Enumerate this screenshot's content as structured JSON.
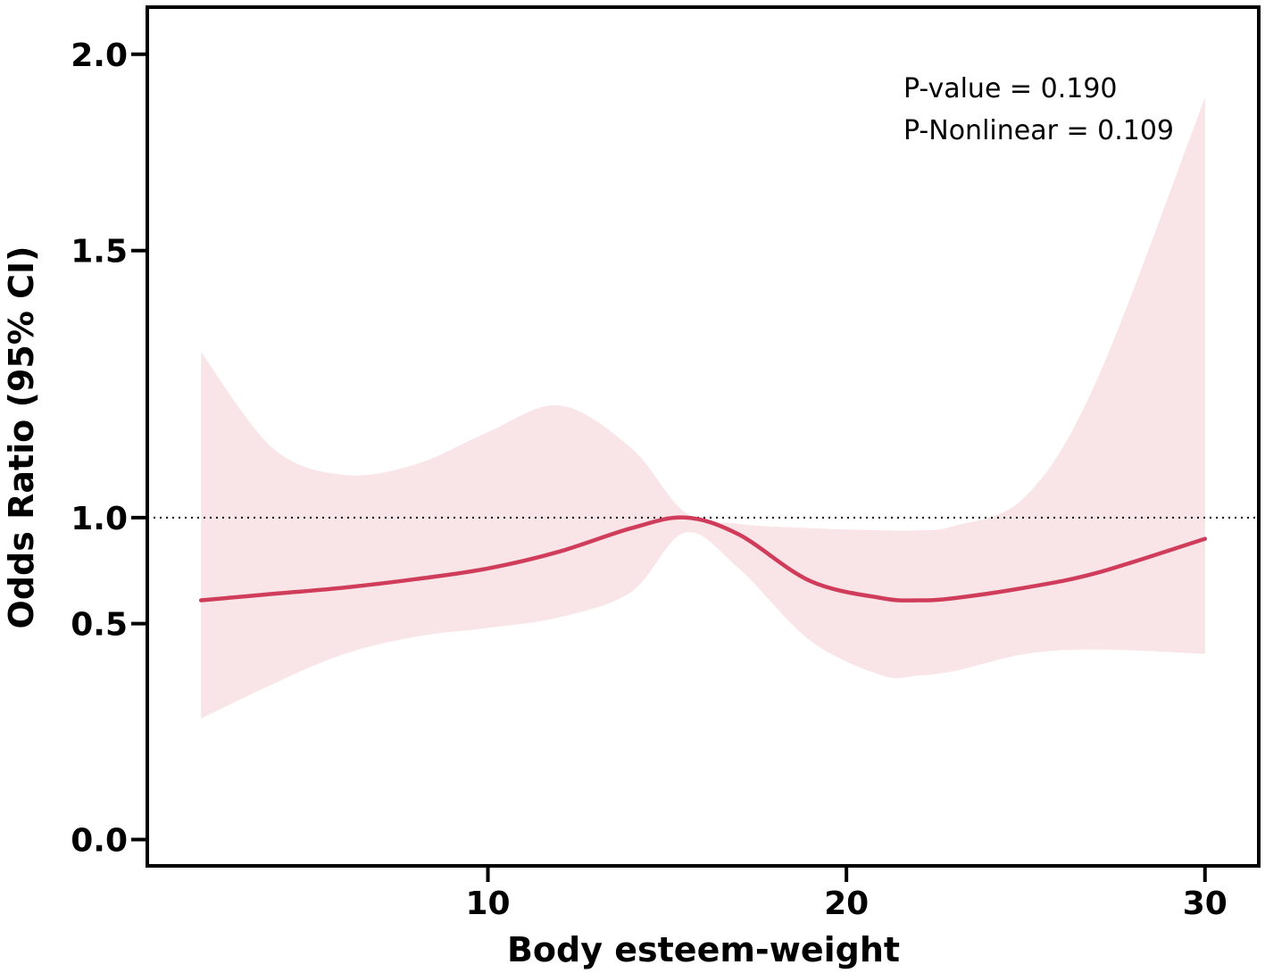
{
  "chart_data": {
    "type": "line",
    "title": "",
    "xlabel": "Body esteem-weight",
    "ylabel": "Odds Ratio (95% CI)",
    "xlim": [
      0.5,
      31.5
    ],
    "ylim": [
      -0.067,
      2.12
    ],
    "y_scale_breaks": [
      {
        "value": 0.0,
        "position": 0.0
      },
      {
        "value": 0.5,
        "position": 0.55
      },
      {
        "value": 1.0,
        "position": 0.82
      },
      {
        "value": 1.5,
        "position": 1.5
      },
      {
        "value": 2.0,
        "position": 2.0
      }
    ],
    "xticks": [
      10,
      20,
      30
    ],
    "xtick_labels": [
      "10",
      "20",
      "30"
    ],
    "yticks": [
      0.0,
      0.5,
      1.0,
      1.5,
      2.0
    ],
    "ytick_labels": [
      "0.0",
      "0.5",
      "1.0",
      "1.5",
      "2.0"
    ],
    "reference_line": {
      "y": 1.0,
      "style": "dotted"
    },
    "series": [
      {
        "name": "Odds Ratio",
        "color": "#cf3d5b",
        "x": [
          2,
          4,
          6,
          8,
          10,
          12,
          14,
          15.5,
          17,
          19,
          21,
          22,
          23,
          25,
          27,
          30
        ],
        "y": [
          0.61,
          0.64,
          0.67,
          0.71,
          0.76,
          0.84,
          0.95,
          1.0,
          0.92,
          0.7,
          0.62,
          0.61,
          0.62,
          0.67,
          0.74,
          0.9
        ],
        "lower": [
          0.28,
          0.36,
          0.43,
          0.47,
          0.49,
          0.53,
          0.65,
          0.93,
          0.76,
          0.46,
          0.38,
          0.38,
          0.39,
          0.43,
          0.44,
          0.43
        ],
        "upper": [
          1.31,
          1.13,
          1.08,
          1.1,
          1.16,
          1.21,
          1.13,
          1.01,
          0.97,
          0.95,
          0.94,
          0.94,
          0.96,
          1.04,
          1.26,
          1.89
        ]
      }
    ],
    "ci_fill_color": "#f9e4e8",
    "annotations": [
      "P-value = 0.190",
      "P-Nonlinear = 0.109"
    ],
    "annotation_position": "top-right"
  }
}
